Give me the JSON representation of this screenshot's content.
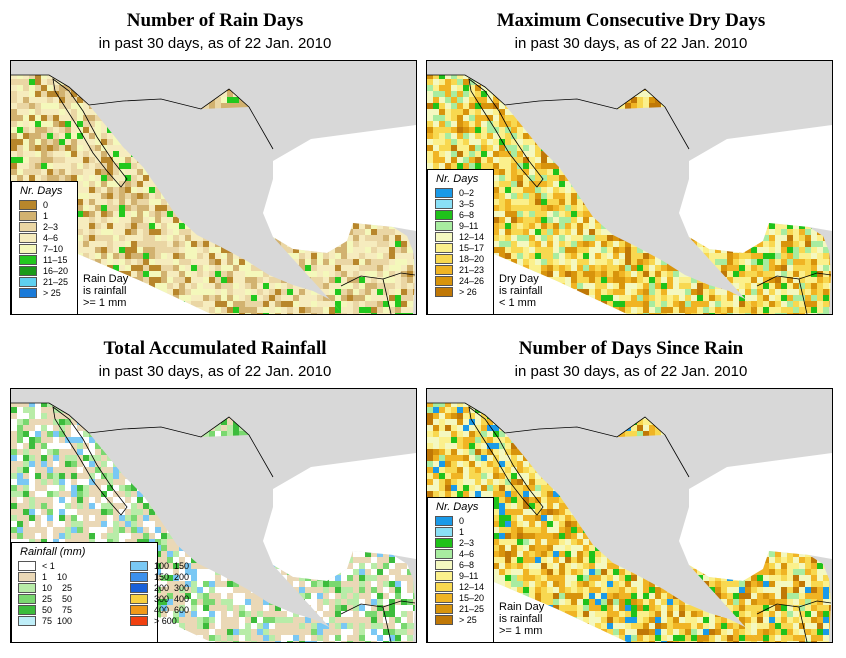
{
  "panels": [
    {
      "title": "Number of Rain Days",
      "subtitle": "in past 30 days, as of  22 Jan. 2010",
      "legend_title": "Nr. Days",
      "legend": [
        {
          "label": "0",
          "color": "#b8862b"
        },
        {
          "label": "1",
          "color": "#d2b270"
        },
        {
          "label": "2–3",
          "color": "#ead6a4"
        },
        {
          "label": "4–6",
          "color": "#f6ecbe"
        },
        {
          "label": "7–10",
          "color": "#f4f8bb"
        },
        {
          "label": "11–15",
          "color": "#22c81e"
        },
        {
          "label": "16–20",
          "color": "#1a9a1a"
        },
        {
          "label": "21–25",
          "color": "#5ed0f0"
        },
        {
          "label": "> 25",
          "color": "#1a7ad8"
        }
      ],
      "note": [
        "Rain Day",
        "is rainfall",
        ">= 1 mm"
      ]
    },
    {
      "title": "Maximum Consecutive Dry Days",
      "subtitle": "in past 30 days, as of  22 Jan. 2010",
      "legend_title": "Nr. Days",
      "legend": [
        {
          "label": "0–2",
          "color": "#1a9ae8"
        },
        {
          "label": "3–5",
          "color": "#8ae0f6"
        },
        {
          "label": "6–8",
          "color": "#1fc21a"
        },
        {
          "label": "9–11",
          "color": "#a8eca0"
        },
        {
          "label": "12–14",
          "color": "#f4f8c0"
        },
        {
          "label": "15–17",
          "color": "#fbf08c"
        },
        {
          "label": "18–20",
          "color": "#f8d850"
        },
        {
          "label": "21–23",
          "color": "#f0b424"
        },
        {
          "label": "24–26",
          "color": "#d8940c"
        },
        {
          "label": "> 26",
          "color": "#c07806"
        }
      ],
      "note": [
        "Dry Day",
        "is rainfall",
        "< 1 mm"
      ]
    },
    {
      "title": "Total Accumulated Rainfall",
      "subtitle": "in past 30 days, as of  22 Jan. 2010",
      "legend_title": "Rainfall (mm)",
      "legend": [
        {
          "label": "< 1",
          "color": "#ffffff"
        },
        {
          "label": "1    10",
          "color": "#ead8b6"
        },
        {
          "label": "10    25",
          "color": "#b8eca8"
        },
        {
          "label": "25    50",
          "color": "#7ad870"
        },
        {
          "label": "50    75",
          "color": "#3cbc3c"
        },
        {
          "label": "75  100",
          "color": "#bfeef8"
        },
        {
          "label": "100  150",
          "color": "#7ac8f4"
        },
        {
          "label": "150  200",
          "color": "#3c90ec"
        },
        {
          "label": "200  300",
          "color": "#1860d8"
        },
        {
          "label": "300  400",
          "color": "#f8d040"
        },
        {
          "label": "400  600",
          "color": "#f09818"
        },
        {
          "label": "> 600",
          "color": "#f04010"
        }
      ],
      "note": []
    },
    {
      "title": "Number of Days Since Rain",
      "subtitle": "in past 30 days, as of  22 Jan. 2010",
      "legend_title": "Nr. Days",
      "legend": [
        {
          "label": "0",
          "color": "#1a9ae8"
        },
        {
          "label": "1",
          "color": "#8ae0f6"
        },
        {
          "label": "2–3",
          "color": "#1fc21a"
        },
        {
          "label": "4–6",
          "color": "#a8eca0"
        },
        {
          "label": "6–8",
          "color": "#f4f8c0"
        },
        {
          "label": "9–11",
          "color": "#fbf08c"
        },
        {
          "label": "12–14",
          "color": "#f8d850"
        },
        {
          "label": "15–20",
          "color": "#f0b424"
        },
        {
          "label": "21–25",
          "color": "#d8940c"
        },
        {
          "label": "> 25",
          "color": "#c07806"
        }
      ],
      "note": [
        "Rain Day",
        "is rainfall",
        ">= 1 mm"
      ]
    }
  ],
  "colors": {
    "sea": "#ffffff",
    "outside": "#d8d8d8",
    "border": "#000000"
  }
}
